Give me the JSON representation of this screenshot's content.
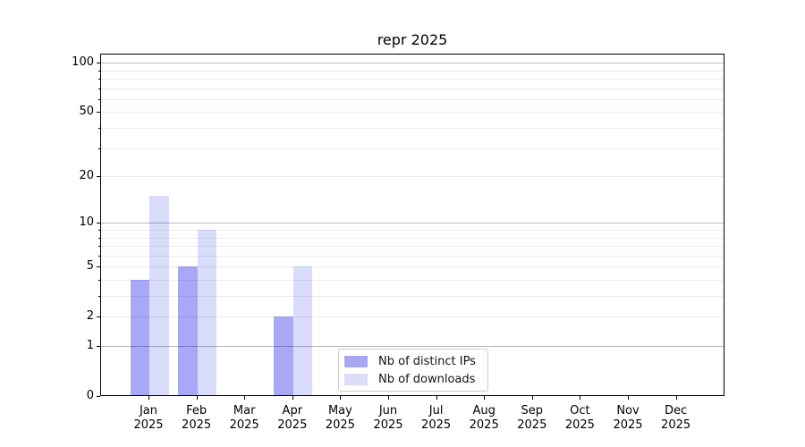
{
  "chart_data": {
    "type": "bar",
    "title": "repr 2025",
    "categories": [
      "Jan",
      "Feb",
      "Mar",
      "Apr",
      "May",
      "Jun",
      "Jul",
      "Aug",
      "Sep",
      "Oct",
      "Nov",
      "Dec"
    ],
    "category_year": "2025",
    "series": [
      {
        "name": "Nb of distinct IPs",
        "color": "#a8a8f2",
        "fill": "rgba(0,0,230,0.34)",
        "values": [
          4,
          5,
          0,
          2,
          0,
          0,
          0,
          0,
          0,
          0,
          0,
          0
        ]
      },
      {
        "name": "Nb of downloads",
        "color": "#dcdcfa",
        "fill": "rgba(0,0,230,0.14)",
        "values": [
          15,
          9,
          0,
          5,
          0,
          0,
          0,
          0,
          0,
          0,
          0,
          0
        ]
      }
    ],
    "yscale": "log1p",
    "ylim": [
      0,
      113
    ],
    "y_ticks": [
      0,
      1,
      2,
      5,
      10,
      20,
      50,
      100
    ],
    "y_major_gridlines": [
      1,
      10,
      100
    ],
    "y_minor_gridlines": [
      2,
      3,
      4,
      5,
      6,
      7,
      8,
      9,
      20,
      30,
      40,
      50,
      60,
      70,
      80,
      90
    ],
    "grid": true,
    "legend_position": "lower center"
  },
  "colors": {
    "background": "#ffffff",
    "axis": "#000000",
    "major_grid": "#b8b8b8",
    "minor_grid": "#ebebeb",
    "text": "#000000",
    "legend_border": "#cccccc"
  }
}
